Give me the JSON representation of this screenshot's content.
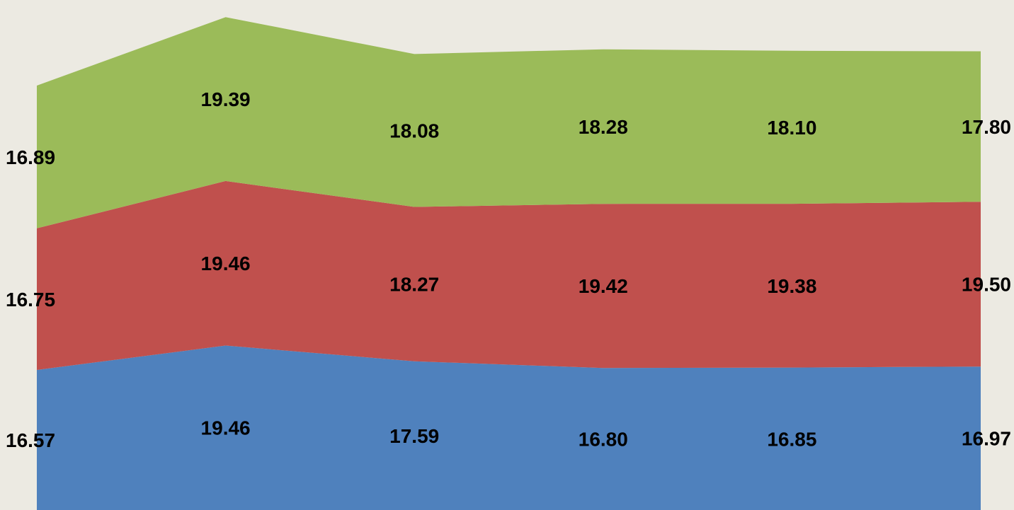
{
  "chart_data": {
    "type": "area",
    "stacked": true,
    "categories": [
      "",
      "",
      "",
      "",
      "",
      ""
    ],
    "series": [
      {
        "values": [
          16.57,
          19.46,
          17.59,
          16.8,
          16.85,
          16.97
        ],
        "color": "#4F81BD"
      },
      {
        "values": [
          16.75,
          19.46,
          18.27,
          19.42,
          19.38,
          19.5
        ],
        "color": "#C0504D"
      },
      {
        "values": [
          16.89,
          19.39,
          18.08,
          18.28,
          18.1,
          17.8
        ],
        "color": "#9BBB59"
      }
    ],
    "labels": [
      [
        "16.57",
        "19.46",
        "17.59",
        "16.80",
        "16.85",
        "16.97"
      ],
      [
        "16.75",
        "19.46",
        "18.27",
        "19.42",
        "19.38",
        "19.50"
      ],
      [
        "16.89",
        "19.39",
        "18.08",
        "18.28",
        "18.10",
        "17.80"
      ]
    ],
    "data_labels": true,
    "legend": false,
    "grid": false,
    "axes_visible": false,
    "background": "#ECEAE2"
  }
}
